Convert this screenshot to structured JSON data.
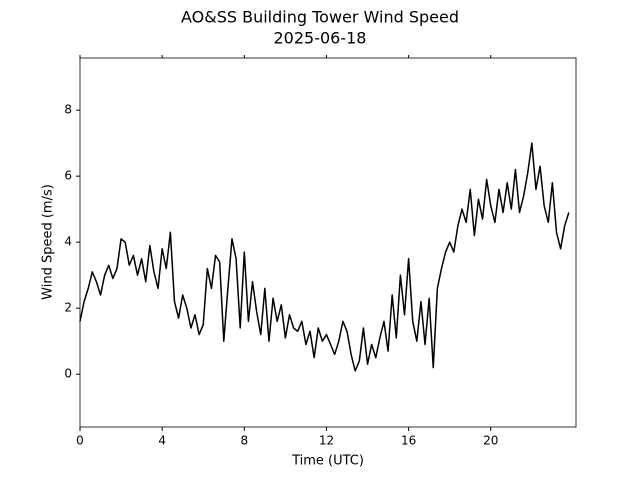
{
  "chart_data": {
    "type": "line",
    "title": "AO&SS Building Tower Wind Speed",
    "subtitle": "2025-06-18",
    "xlabel": "Time (UTC)",
    "ylabel": "Wind Speed (m/s)",
    "x": [
      0.0,
      0.2,
      0.4,
      0.6,
      0.8,
      1.0,
      1.2,
      1.4,
      1.6,
      1.8,
      2.0,
      2.2,
      2.4,
      2.6,
      2.8,
      3.0,
      3.2,
      3.4,
      3.6,
      3.8,
      4.0,
      4.2,
      4.4,
      4.6,
      4.8,
      5.0,
      5.2,
      5.4,
      5.6,
      5.8,
      6.0,
      6.2,
      6.4,
      6.6,
      6.8,
      7.0,
      7.2,
      7.4,
      7.6,
      7.8,
      8.0,
      8.2,
      8.4,
      8.6,
      8.8,
      9.0,
      9.2,
      9.4,
      9.6,
      9.8,
      10.0,
      10.2,
      10.4,
      10.6,
      10.8,
      11.0,
      11.2,
      11.4,
      11.6,
      11.8,
      12.0,
      12.2,
      12.4,
      12.6,
      12.8,
      13.0,
      13.2,
      13.4,
      13.6,
      13.8,
      14.0,
      14.2,
      14.4,
      14.6,
      14.8,
      15.0,
      15.2,
      15.4,
      15.6,
      15.8,
      16.0,
      16.2,
      16.4,
      16.6,
      16.8,
      17.0,
      17.2,
      17.4,
      17.6,
      17.8,
      18.0,
      18.2,
      18.4,
      18.6,
      18.8,
      19.0,
      19.2,
      19.4,
      19.6,
      19.8,
      20.0,
      20.2,
      20.4,
      20.6,
      20.8,
      21.0,
      21.2,
      21.4,
      21.6,
      21.8,
      22.0,
      22.2,
      22.4,
      22.6,
      22.8,
      23.0,
      23.2,
      23.4,
      23.6,
      23.8
    ],
    "series": [
      {
        "name": "Wind Speed",
        "color": "#000000",
        "values": [
          1.6,
          2.2,
          2.6,
          3.1,
          2.8,
          2.4,
          3.0,
          3.3,
          2.9,
          3.2,
          4.1,
          4.0,
          3.3,
          3.6,
          3.0,
          3.5,
          2.8,
          3.9,
          3.1,
          2.6,
          3.8,
          3.2,
          4.3,
          2.2,
          1.7,
          2.4,
          2.0,
          1.4,
          1.8,
          1.2,
          1.5,
          3.2,
          2.6,
          3.6,
          3.4,
          1.0,
          2.6,
          4.1,
          3.5,
          1.4,
          3.7,
          1.6,
          2.8,
          1.9,
          1.2,
          2.6,
          1.0,
          2.3,
          1.6,
          2.1,
          1.1,
          1.8,
          1.4,
          1.3,
          1.6,
          0.9,
          1.3,
          0.5,
          1.4,
          1.0,
          1.2,
          0.9,
          0.6,
          1.0,
          1.6,
          1.3,
          0.6,
          0.1,
          0.4,
          1.4,
          0.3,
          0.9,
          0.5,
          1.1,
          1.6,
          0.7,
          2.4,
          1.1,
          3.0,
          1.8,
          3.5,
          1.6,
          1.0,
          2.2,
          0.9,
          2.3,
          0.2,
          2.6,
          3.2,
          3.7,
          4.0,
          3.7,
          4.5,
          5.0,
          4.6,
          5.6,
          4.2,
          5.3,
          4.7,
          5.9,
          5.1,
          4.6,
          5.6,
          4.9,
          5.8,
          5.0,
          6.2,
          4.9,
          5.4,
          6.1,
          7.0,
          5.6,
          6.3,
          5.1,
          4.6,
          5.8,
          4.3,
          3.8,
          4.5,
          4.9
        ]
      }
    ],
    "xlim": [
      0,
      24.15
    ],
    "ylim": [
      -1.6,
      9.58
    ],
    "xticks": [
      0,
      4,
      8,
      12,
      16,
      20
    ],
    "yticks": [
      0,
      2,
      4,
      6,
      8
    ]
  }
}
